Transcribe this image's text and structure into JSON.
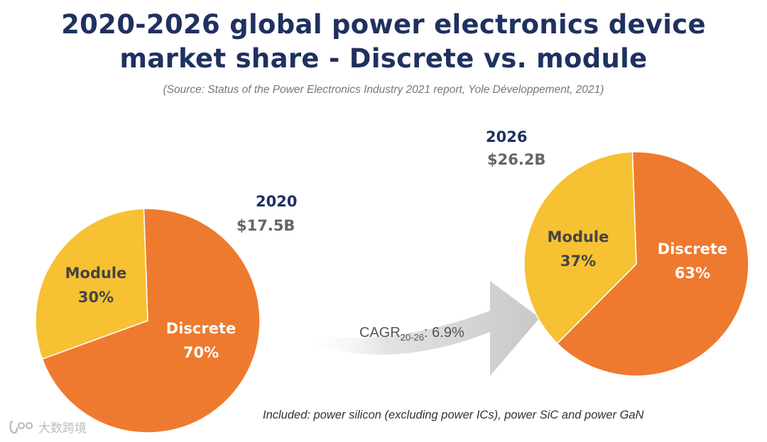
{
  "title": {
    "line1": "2020-2026 global power electronics device",
    "line2": "market share - Discrete vs. module"
  },
  "source": "(Source: Status of the Power Electronics Industry 2021 report, Yole Développement, 2021)",
  "chart_data": [
    {
      "type": "pie",
      "year": "2020",
      "total": "$17.5B",
      "slices": [
        {
          "name": "Module",
          "value": 30,
          "value_label": "30%",
          "color": "#f6c133"
        },
        {
          "name": "Discrete",
          "value": 70,
          "value_label": "70%",
          "color": "#ee7a2f"
        }
      ]
    },
    {
      "type": "pie",
      "year": "2026",
      "total": "$26.2B",
      "slices": [
        {
          "name": "Module",
          "value": 37,
          "value_label": "37%",
          "color": "#f6c133"
        },
        {
          "name": "Discrete",
          "value": 63,
          "value_label": "63%",
          "color": "#ee7a2f"
        }
      ]
    }
  ],
  "cagr": {
    "prefix": "CAGR",
    "subscript": "20-26",
    "value": ": 6.9%"
  },
  "footnote": "Included: power silicon (excluding power ICs), power SiC and power GaN",
  "watermark": "大数跨境"
}
